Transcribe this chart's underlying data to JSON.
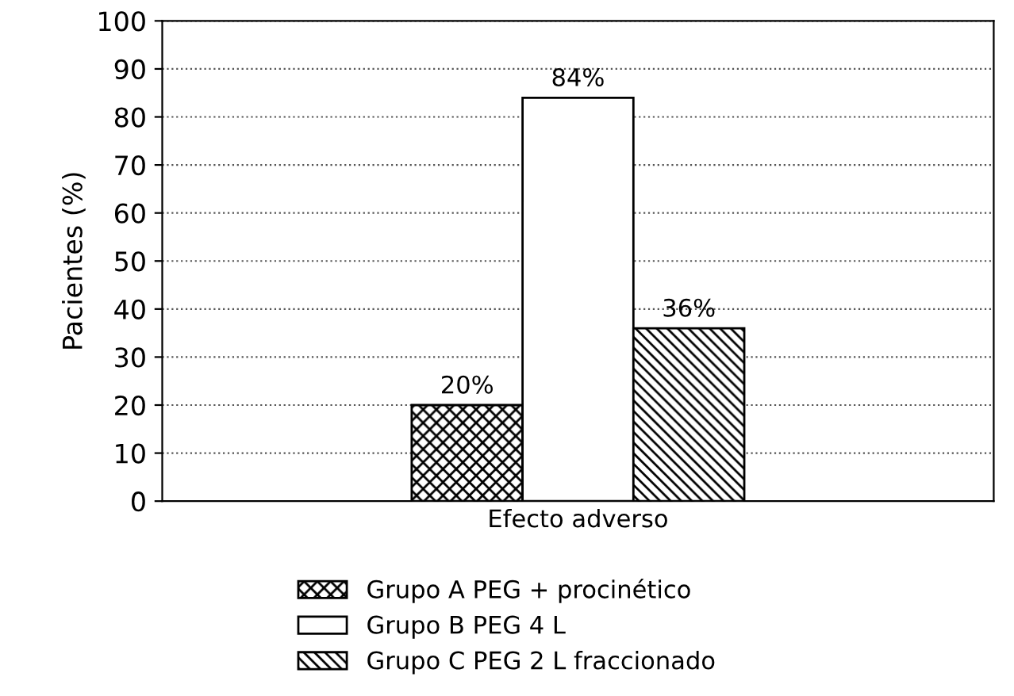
{
  "chart_data": {
    "type": "bar",
    "ylabel": "Pacientes (%)",
    "categories": [
      "Efecto adverso"
    ],
    "series": [
      {
        "name": "Grupo A PEG + procinético",
        "color": "#000000",
        "values": [
          20
        ],
        "value_labels": [
          "20%"
        ]
      },
      {
        "name": "Grupo B PEG 4 L",
        "color": "#ffffff",
        "values": [
          84
        ],
        "value_labels": [
          "84%"
        ]
      },
      {
        "name": "Grupo C PEG 2 L fraccionado",
        "color": "#000000",
        "values": [
          36
        ],
        "value_labels": [
          "36%"
        ]
      }
    ],
    "ylim": [
      0,
      100
    ],
    "yticks": [
      0,
      10,
      20,
      30,
      40,
      50,
      60,
      70,
      80,
      90,
      100
    ],
    "grid": "y",
    "legend": "bottom"
  }
}
